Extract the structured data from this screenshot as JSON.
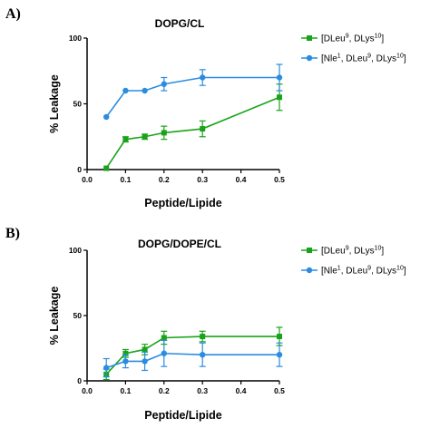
{
  "chart_data": [
    {
      "panel_label": "A)",
      "type": "line",
      "title": "DOPG/CL",
      "xlabel": "Peptide/Lipide",
      "ylabel": "% Leakage",
      "xlim": [
        0.0,
        0.5
      ],
      "ylim": [
        0,
        100
      ],
      "xticks": [
        0.0,
        0.1,
        0.2,
        0.3,
        0.4,
        0.5
      ],
      "xtick_labels": [
        "0.0",
        "0.1",
        "0.2",
        "0.3",
        "0.4",
        "0.5"
      ],
      "yticks": [
        0,
        50,
        100
      ],
      "ytick_labels": [
        "0",
        "50",
        "100"
      ],
      "legend_position": "top-right",
      "grid": false,
      "series": [
        {
          "legend_parts": [
            [
              "[DLeu",
              ""
            ],
            [
              "9",
              "sup"
            ],
            [
              ", DLys",
              ""
            ],
            [
              "10",
              "sup"
            ],
            [
              "]",
              ""
            ]
          ],
          "color": "#1aa31a",
          "marker": "square",
          "x": [
            0.05,
            0.1,
            0.15,
            0.2,
            0.3,
            0.5
          ],
          "y": [
            1,
            23,
            25,
            28,
            31,
            55
          ],
          "err": [
            0,
            2,
            2,
            5,
            6,
            10
          ]
        },
        {
          "legend_parts": [
            [
              "[Nle",
              ""
            ],
            [
              "1",
              "sup"
            ],
            [
              ", DLeu",
              ""
            ],
            [
              "9",
              "sup"
            ],
            [
              ", DLys",
              ""
            ],
            [
              "10",
              "sup"
            ],
            [
              "]",
              ""
            ]
          ],
          "color": "#2b8ce0",
          "marker": "circle",
          "x": [
            0.05,
            0.1,
            0.15,
            0.2,
            0.3,
            0.5
          ],
          "y": [
            40,
            60,
            60,
            65,
            70,
            70
          ],
          "err": [
            0,
            0,
            0,
            5,
            6,
            10
          ]
        }
      ]
    },
    {
      "panel_label": "B)",
      "type": "line",
      "title": "DOPG/DOPE/CL",
      "xlabel": "Peptide/Lipide",
      "ylabel": "% Leakage",
      "xlim": [
        0.0,
        0.5
      ],
      "ylim": [
        0,
        100
      ],
      "xticks": [
        0.0,
        0.1,
        0.2,
        0.3,
        0.4,
        0.5
      ],
      "xtick_labels": [
        "0.0",
        "0.1",
        "0.2",
        "0.3",
        "0.4",
        "0.5"
      ],
      "yticks": [
        0,
        50,
        100
      ],
      "ytick_labels": [
        "0",
        "50",
        "100"
      ],
      "legend_position": "top-right",
      "grid": false,
      "series": [
        {
          "legend_parts": [
            [
              "[DLeu",
              ""
            ],
            [
              "9",
              "sup"
            ],
            [
              ", DLys",
              ""
            ],
            [
              "10",
              "sup"
            ],
            [
              "]",
              ""
            ]
          ],
          "color": "#1aa31a",
          "marker": "square",
          "x": [
            0.05,
            0.1,
            0.15,
            0.2,
            0.3,
            0.5
          ],
          "y": [
            5,
            21,
            24,
            33,
            34,
            34
          ],
          "err": [
            4,
            3,
            4,
            5,
            4,
            7
          ]
        },
        {
          "legend_parts": [
            [
              "[Nle",
              ""
            ],
            [
              "1",
              "sup"
            ],
            [
              ", DLeu",
              ""
            ],
            [
              "9",
              "sup"
            ],
            [
              ", DLys",
              ""
            ],
            [
              "10",
              "sup"
            ],
            [
              "]",
              ""
            ]
          ],
          "color": "#2b8ce0",
          "marker": "circle",
          "x": [
            0.05,
            0.1,
            0.15,
            0.2,
            0.3,
            0.5
          ],
          "y": [
            10,
            15,
            15,
            21,
            20,
            20
          ],
          "err": [
            7,
            5,
            7,
            10,
            9,
            9
          ]
        }
      ]
    }
  ]
}
